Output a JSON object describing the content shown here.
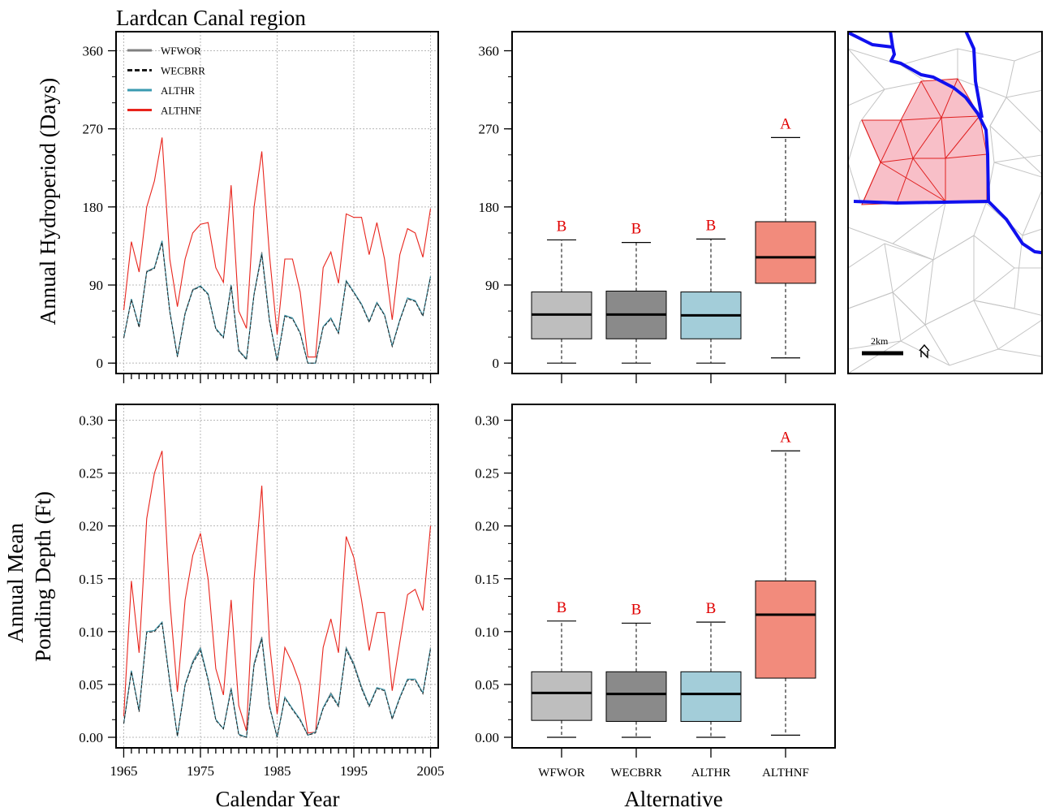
{
  "title": "Lardcan Canal region",
  "colors": {
    "WFWOR": "#808080",
    "WECBRR": "#1a1a1a",
    "ALTHR": "#3a9ab0",
    "ALTHNF": "#e8241c",
    "box_WFWOR": "#bebebe",
    "box_WECBRR": "#8a8a8a",
    "box_ALTHR": "#a3cdd9",
    "box_ALTHNF": "#f28b7c",
    "letters": "#e00000",
    "grid": "#b8b8b8"
  },
  "axes": {
    "top_ylabel": "Annual Hydroperiod (Days)",
    "bottom_ylabel_line1": "Annual Mean",
    "bottom_ylabel_line2": "Ponding Depth (Ft)",
    "ts_xlabel": "Calendar Year",
    "box_xlabel": "Alternative"
  },
  "legend": [
    "WFWOR",
    "WECBRR",
    "ALTHR",
    "ALTHNF"
  ],
  "map": {
    "scale_label": "2km",
    "north_icon": "north-arrow-icon"
  },
  "chart_data": [
    {
      "type": "line",
      "panel": "hydroperiod-timeseries",
      "x": [
        1965,
        1966,
        1967,
        1968,
        1969,
        1970,
        1971,
        1972,
        1973,
        1974,
        1975,
        1976,
        1977,
        1978,
        1979,
        1980,
        1981,
        1982,
        1983,
        1984,
        1985,
        1986,
        1987,
        1988,
        1989,
        1990,
        1991,
        1992,
        1993,
        1994,
        1995,
        1996,
        1997,
        1998,
        1999,
        2000,
        2001,
        2002,
        2003,
        2004,
        2005
      ],
      "xlim": [
        1964,
        2006
      ],
      "xticks": [
        1965,
        1975,
        1985,
        1995,
        2005
      ],
      "ylim": [
        -12,
        382
      ],
      "yticks": [
        0,
        90,
        180,
        270,
        360
      ],
      "grid": true,
      "legend_position": "top-left",
      "series": [
        {
          "name": "WFWOR",
          "values": [
            29,
            74,
            42,
            106,
            110,
            141,
            60,
            8,
            58,
            85,
            89,
            80,
            40,
            30,
            90,
            15,
            5,
            80,
            128,
            50,
            3,
            55,
            52,
            35,
            0,
            0,
            42,
            52,
            35,
            95,
            82,
            68,
            48,
            70,
            56,
            20,
            50,
            75,
            72,
            55,
            100
          ]
        },
        {
          "name": "WECBRR",
          "values": [
            29,
            73,
            41,
            105,
            109,
            139,
            59,
            7,
            57,
            84,
            88,
            79,
            39,
            29,
            89,
            14,
            4,
            79,
            125,
            49,
            2,
            54,
            51,
            34,
            0,
            0,
            41,
            51,
            34,
            94,
            81,
            67,
            47,
            69,
            55,
            19,
            49,
            74,
            71,
            54,
            99
          ]
        },
        {
          "name": "ALTHR",
          "values": [
            29,
            74,
            42,
            105,
            110,
            141,
            60,
            8,
            57,
            84,
            89,
            80,
            40,
            30,
            90,
            14,
            5,
            80,
            126,
            50,
            3,
            55,
            52,
            35,
            0,
            0,
            42,
            52,
            35,
            95,
            82,
            68,
            48,
            70,
            56,
            20,
            50,
            75,
            72,
            55,
            100
          ]
        },
        {
          "name": "ALTHNF",
          "values": [
            61,
            140,
            105,
            180,
            210,
            260,
            120,
            65,
            120,
            150,
            160,
            162,
            110,
            93,
            205,
            60,
            40,
            180,
            244,
            125,
            33,
            120,
            120,
            82,
            7,
            7,
            110,
            128,
            92,
            172,
            168,
            168,
            125,
            162,
            120,
            50,
            125,
            155,
            150,
            122,
            178
          ]
        }
      ]
    },
    {
      "type": "box",
      "panel": "hydroperiod-boxplot",
      "categories": [
        "WFWOR",
        "WECBRR",
        "ALTHR",
        "ALTHNF"
      ],
      "ylim": [
        -12,
        382
      ],
      "yticks": [
        0,
        90,
        180,
        270,
        360
      ],
      "boxes": [
        {
          "min": 0,
          "q1": 28,
          "median": 56,
          "q3": 82,
          "max": 142,
          "letter": "B"
        },
        {
          "min": 0,
          "q1": 28,
          "median": 56,
          "q3": 83,
          "max": 139,
          "letter": "B"
        },
        {
          "min": 0,
          "q1": 28,
          "median": 55,
          "q3": 82,
          "max": 143,
          "letter": "B"
        },
        {
          "min": 6,
          "q1": 92,
          "median": 122,
          "q3": 163,
          "max": 260,
          "letter": "A"
        }
      ]
    },
    {
      "type": "line",
      "panel": "ponding-depth-timeseries",
      "x": [
        1965,
        1966,
        1967,
        1968,
        1969,
        1970,
        1971,
        1972,
        1973,
        1974,
        1975,
        1976,
        1977,
        1978,
        1979,
        1980,
        1981,
        1982,
        1983,
        1984,
        1985,
        1986,
        1987,
        1988,
        1989,
        1990,
        1991,
        1992,
        1993,
        1994,
        1995,
        1996,
        1997,
        1998,
        1999,
        2000,
        2001,
        2002,
        2003,
        2004,
        2005
      ],
      "xlim": [
        1964,
        2006
      ],
      "xticks": [
        1965,
        1975,
        1985,
        1995,
        2005
      ],
      "ylim": [
        -0.01,
        0.315
      ],
      "yticks": [
        0.0,
        0.05,
        0.1,
        0.15,
        0.2,
        0.25,
        0.3
      ],
      "grid": true,
      "series": [
        {
          "name": "WFWOR",
          "values": [
            0.013,
            0.063,
            0.025,
            0.1,
            0.101,
            0.109,
            0.053,
            0.001,
            0.05,
            0.072,
            0.085,
            0.055,
            0.017,
            0.008,
            0.047,
            0.003,
            0.0,
            0.07,
            0.095,
            0.03,
            0.0,
            0.038,
            0.027,
            0.017,
            0.002,
            0.005,
            0.028,
            0.042,
            0.03,
            0.085,
            0.07,
            0.048,
            0.03,
            0.047,
            0.045,
            0.018,
            0.038,
            0.055,
            0.055,
            0.042,
            0.085
          ]
        },
        {
          "name": "WECBRR",
          "values": [
            0.013,
            0.062,
            0.024,
            0.099,
            0.1,
            0.108,
            0.052,
            0.001,
            0.049,
            0.07,
            0.082,
            0.054,
            0.016,
            0.008,
            0.045,
            0.002,
            0.0,
            0.068,
            0.093,
            0.029,
            0.0,
            0.037,
            0.026,
            0.016,
            0.002,
            0.004,
            0.027,
            0.04,
            0.029,
            0.083,
            0.068,
            0.046,
            0.029,
            0.046,
            0.044,
            0.017,
            0.037,
            0.054,
            0.054,
            0.041,
            0.083
          ]
        },
        {
          "name": "ALTHR",
          "values": [
            0.013,
            0.063,
            0.025,
            0.1,
            0.101,
            0.109,
            0.053,
            0.001,
            0.05,
            0.071,
            0.084,
            0.055,
            0.017,
            0.008,
            0.046,
            0.003,
            0.0,
            0.069,
            0.094,
            0.03,
            0.0,
            0.038,
            0.027,
            0.017,
            0.002,
            0.005,
            0.028,
            0.041,
            0.03,
            0.084,
            0.069,
            0.047,
            0.03,
            0.047,
            0.045,
            0.018,
            0.038,
            0.055,
            0.055,
            0.042,
            0.084
          ]
        },
        {
          "name": "ALTHNF",
          "values": [
            0.02,
            0.148,
            0.08,
            0.207,
            0.25,
            0.271,
            0.13,
            0.043,
            0.13,
            0.172,
            0.193,
            0.15,
            0.065,
            0.04,
            0.13,
            0.03,
            0.006,
            0.15,
            0.238,
            0.09,
            0.022,
            0.085,
            0.07,
            0.05,
            0.004,
            0.005,
            0.085,
            0.112,
            0.08,
            0.19,
            0.17,
            0.13,
            0.082,
            0.118,
            0.118,
            0.044,
            0.09,
            0.135,
            0.14,
            0.12,
            0.2
          ]
        }
      ]
    },
    {
      "type": "box",
      "panel": "ponding-depth-boxplot",
      "categories": [
        "WFWOR",
        "WECBRR",
        "ALTHR",
        "ALTHNF"
      ],
      "ylim": [
        -0.01,
        0.315
      ],
      "yticks": [
        0.0,
        0.05,
        0.1,
        0.15,
        0.2,
        0.25,
        0.3
      ],
      "boxes": [
        {
          "min": 0.0,
          "q1": 0.016,
          "median": 0.042,
          "q3": 0.062,
          "max": 0.11,
          "letter": "B"
        },
        {
          "min": 0.0,
          "q1": 0.015,
          "median": 0.041,
          "q3": 0.062,
          "max": 0.108,
          "letter": "B"
        },
        {
          "min": 0.0,
          "q1": 0.015,
          "median": 0.041,
          "q3": 0.062,
          "max": 0.109,
          "letter": "B"
        },
        {
          "min": 0.002,
          "q1": 0.056,
          "median": 0.116,
          "q3": 0.148,
          "max": 0.271,
          "letter": "A"
        }
      ]
    }
  ]
}
